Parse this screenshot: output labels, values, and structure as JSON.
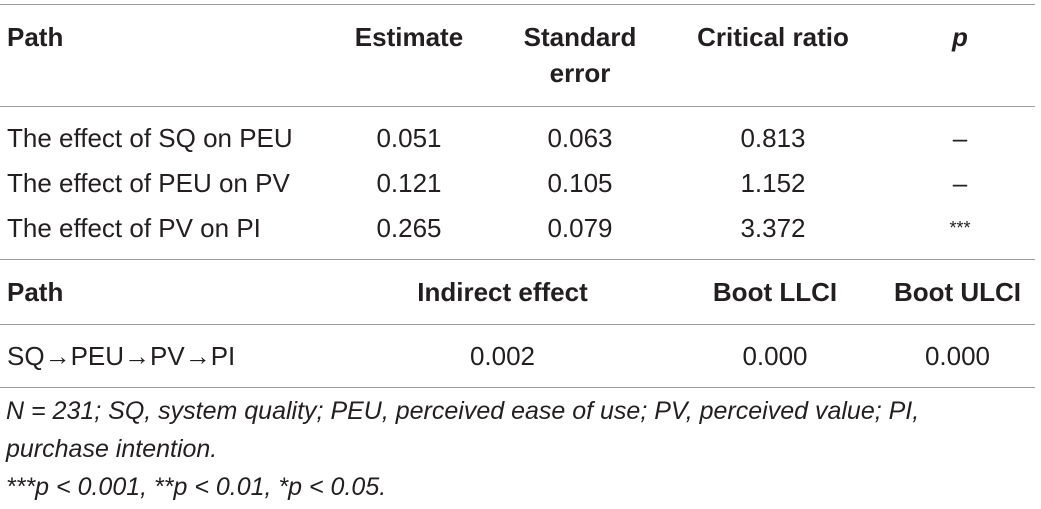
{
  "table1": {
    "headers": {
      "path": "Path",
      "estimate": "Estimate",
      "se_line1": "Standard",
      "se_line2": "error",
      "cr": "Critical ratio",
      "p": "p"
    },
    "rows": [
      {
        "path": "The effect of SQ on PEU",
        "estimate": "0.051",
        "se": "0.063",
        "cr": "0.813",
        "p": "–"
      },
      {
        "path": "The effect of PEU on PV",
        "estimate": "0.121",
        "se": "0.105",
        "cr": "1.152",
        "p": "–"
      },
      {
        "path": "The effect of PV on PI",
        "estimate": "0.265",
        "se": "0.079",
        "cr": "3.372",
        "p": "***"
      }
    ]
  },
  "table2": {
    "headers": {
      "path": "Path",
      "indirect": "Indirect effect",
      "llci": "Boot LLCI",
      "ulci": "Boot ULCI"
    },
    "rows": [
      {
        "path": "SQ→PEU→PV→PI",
        "indirect": "0.002",
        "llci": "0.000",
        "ulci": "0.000"
      }
    ]
  },
  "notes": {
    "line1": "N = 231; SQ, system quality; PEU, perceived ease of use; PV, perceived value; PI,",
    "line2": "purchase intention.",
    "line3": "***p < 0.001, **p < 0.01, *p < 0.05."
  }
}
